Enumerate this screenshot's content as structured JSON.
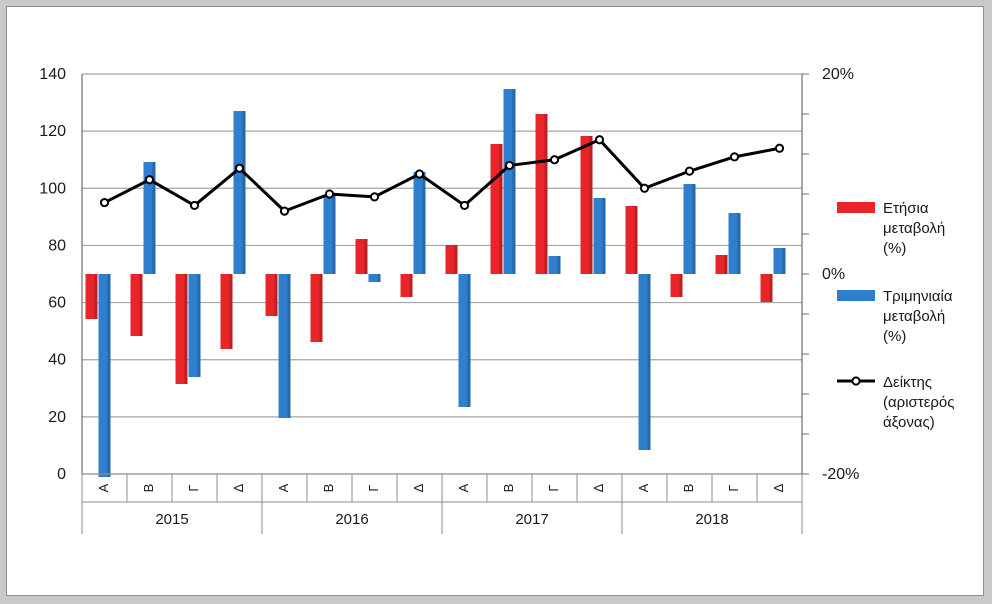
{
  "chart_data": {
    "type": "bar",
    "years": [
      "2015",
      "2016",
      "2017",
      "2018"
    ],
    "quarters": [
      "Α",
      "Β",
      "Γ",
      "Δ"
    ],
    "series": [
      {
        "name_lines": [
          "Ετήσια",
          "μεταβολή",
          "(%)"
        ],
        "axis": "right",
        "kind": "bar",
        "color": "#e8262a",
        "values": [
          -4.5,
          -6.2,
          -11,
          -7.5,
          -4.2,
          -6.8,
          3.5,
          -2.3,
          2.9,
          13,
          16,
          13.8,
          6.8,
          -2.3,
          1.9,
          -2.8
        ]
      },
      {
        "name_lines": [
          "Τριμηνιαία",
          "μεταβολή",
          "(%)"
        ],
        "axis": "right",
        "kind": "bar",
        "color": "#2f7fce",
        "values": [
          -20.3,
          11.2,
          -10.3,
          16.3,
          -14.4,
          7.9,
          -0.8,
          10.2,
          -13.3,
          18.5,
          1.8,
          7.6,
          -17.6,
          9,
          6.1,
          2.6
        ]
      },
      {
        "name_lines": [
          "Δείκτης",
          "(αριστερός",
          "άξονας)"
        ],
        "axis": "left",
        "kind": "line",
        "color": "#000000",
        "values": [
          95,
          103,
          94,
          107,
          92,
          98,
          97,
          105,
          94,
          108,
          110,
          117,
          100,
          106,
          111,
          114
        ]
      }
    ],
    "left_axis": {
      "min": 0,
      "max": 140,
      "ticks": [
        "0",
        "20",
        "40",
        "60",
        "80",
        "100",
        "120",
        "140"
      ]
    },
    "right_axis": {
      "min": -20,
      "max": 20,
      "labels": [
        "-20%",
        "0%",
        "20%"
      ]
    },
    "grid": true,
    "legend_position": "right"
  }
}
